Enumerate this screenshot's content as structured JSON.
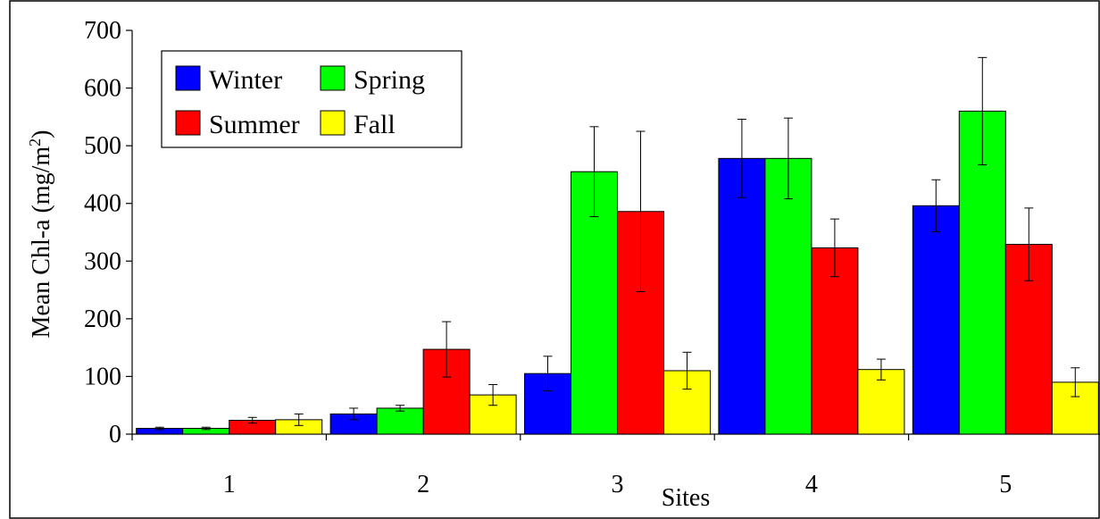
{
  "chart_data": {
    "type": "bar",
    "xlabel": "Sites",
    "ylabel": "Mean Chl-a (mg/m",
    "ylabel_superscript": "2",
    "ylabel_suffix": ")",
    "ylim": [
      0,
      700
    ],
    "yticks": [
      0,
      100,
      200,
      300,
      400,
      500,
      600,
      700
    ],
    "categories": [
      "1",
      "2",
      "3",
      "4",
      "5"
    ],
    "grid": false,
    "legend_position": "top-left",
    "series": [
      {
        "name": "Winter",
        "color": "#0000ff",
        "values": [
          10,
          35,
          105,
          478,
          396
        ],
        "errors": [
          2,
          10,
          30,
          68,
          45
        ]
      },
      {
        "name": "Spring",
        "color": "#00ff00",
        "values": [
          10,
          45,
          455,
          478,
          560
        ],
        "errors": [
          2,
          5,
          78,
          70,
          93
        ]
      },
      {
        "name": "Summer",
        "color": "#ff0000",
        "values": [
          24,
          147,
          386,
          323,
          329
        ],
        "errors": [
          5,
          48,
          139,
          50,
          63
        ]
      },
      {
        "name": "Fall",
        "color": "#ffff00",
        "values": [
          25,
          68,
          110,
          112,
          90
        ],
        "errors": [
          10,
          18,
          32,
          18,
          25
        ]
      }
    ]
  }
}
